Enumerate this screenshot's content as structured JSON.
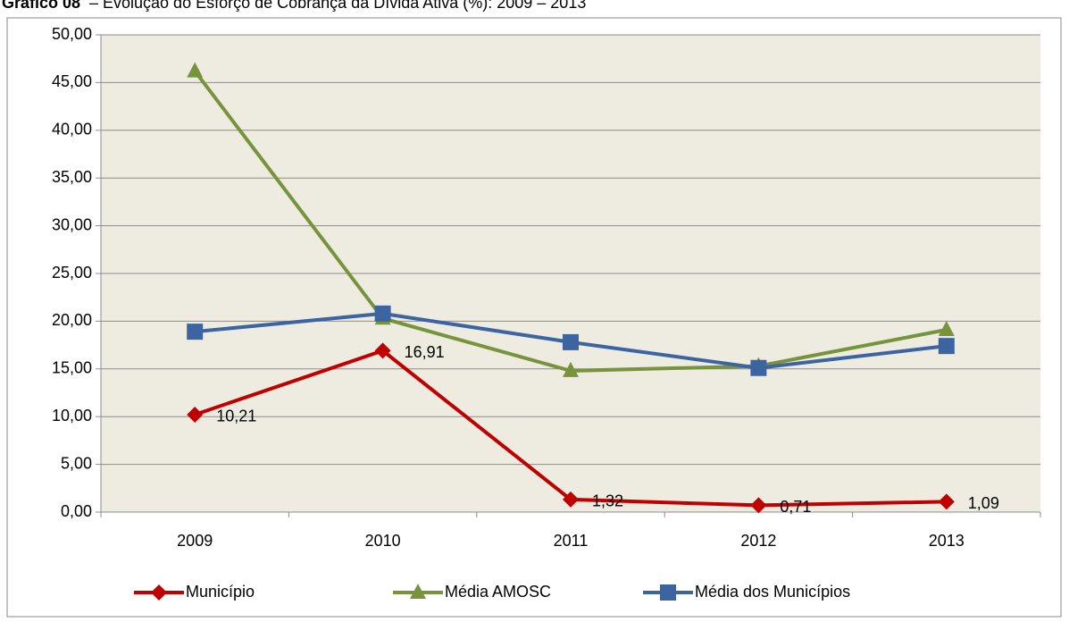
{
  "chart_data": {
    "type": "line",
    "label": "Gráfico 08",
    "title": "– Evolução do Esforço de Cobrança da Dívida Ativa (%): 2009 – 2013",
    "categories": [
      "2009",
      "2010",
      "2011",
      "2012",
      "2013"
    ],
    "series": [
      {
        "name": "Município",
        "color": "#c00000",
        "marker": "diamond",
        "values": [
          10.21,
          16.91,
          1.32,
          0.71,
          1.09
        ],
        "value_labels": [
          "10,21",
          "16,91",
          "1,32",
          "0,71",
          "1,09"
        ]
      },
      {
        "name": "Média AMOSC",
        "color": "#77933c",
        "marker": "triangle",
        "values": [
          46.2,
          20.3,
          14.8,
          15.3,
          19.1
        ]
      },
      {
        "name": "Média dos Municípios",
        "color": "#3b64a0",
        "marker": "square",
        "values": [
          18.9,
          20.8,
          17.8,
          15.1,
          17.4
        ]
      }
    ],
    "ylim": [
      0,
      50
    ],
    "yticks": [
      {
        "value": 0,
        "label": "0,00"
      },
      {
        "value": 5,
        "label": "5,00"
      },
      {
        "value": 10,
        "label": "10,00"
      },
      {
        "value": 15,
        "label": "15,00"
      },
      {
        "value": 20,
        "label": "20,00"
      },
      {
        "value": 25,
        "label": "25,00"
      },
      {
        "value": 30,
        "label": "30,00"
      },
      {
        "value": 35,
        "label": "35,00"
      },
      {
        "value": 40,
        "label": "40,00"
      },
      {
        "value": 45,
        "label": "45,00"
      },
      {
        "value": 50,
        "label": "50,00"
      }
    ],
    "grid": true,
    "legend": "bottom"
  }
}
